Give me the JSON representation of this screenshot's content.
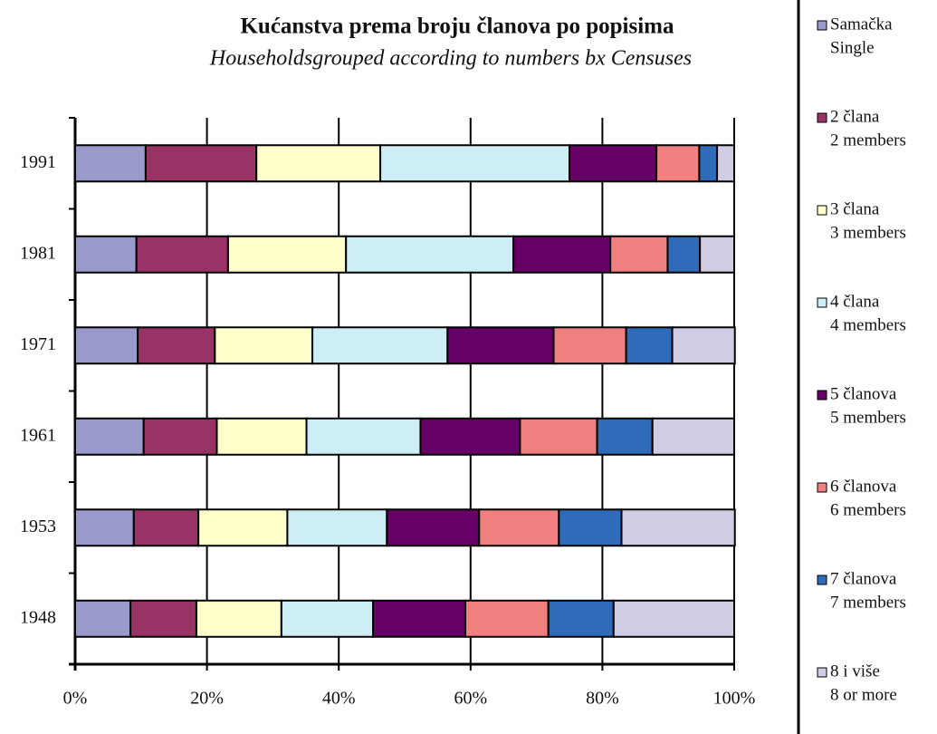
{
  "chart_data": {
    "type": "stacked_bar_horizontal_100",
    "title": "Kućanstva prema broju članova po popisima",
    "subtitle": "Householdsgrouped according to numbers bx Censuses",
    "categories": [
      "1991",
      "1981",
      "1971",
      "1961",
      "1953",
      "1948"
    ],
    "xlim": [
      0,
      100
    ],
    "xticks": [
      {
        "value": 0,
        "label": "0%"
      },
      {
        "value": 20,
        "label": "20%"
      },
      {
        "value": 40,
        "label": "40%"
      },
      {
        "value": 60,
        "label": "60%"
      },
      {
        "value": 80,
        "label": "80%"
      },
      {
        "value": 100,
        "label": "100%"
      }
    ],
    "grid": true,
    "legend": "right",
    "series": [
      {
        "name": "Samačka",
        "name_en": "Single",
        "color": "#9999cc",
        "values": [
          10.7,
          9.3,
          9.5,
          10.4,
          8.9,
          8.4
        ]
      },
      {
        "name": "2 člana",
        "name_en": "2 members",
        "color": "#993366",
        "values": [
          16.8,
          13.9,
          11.7,
          11.1,
          9.8,
          10.0
        ]
      },
      {
        "name": "3 člana",
        "name_en": "3 members",
        "color": "#ffffcc",
        "values": [
          18.8,
          17.9,
          14.8,
          13.6,
          13.5,
          12.9
        ]
      },
      {
        "name": "4 člana",
        "name_en": "4 members",
        "color": "#cceef4",
        "values": [
          28.7,
          25.4,
          20.5,
          17.3,
          15.1,
          13.9
        ]
      },
      {
        "name": "5 članova",
        "name_en": "5 members",
        "color": "#660066",
        "values": [
          13.2,
          14.7,
          16.1,
          15.1,
          14.0,
          14.0
        ]
      },
      {
        "name": "6 članova",
        "name_en": "6 members",
        "color": "#f08080",
        "values": [
          6.5,
          8.7,
          11.0,
          11.7,
          12.1,
          12.6
        ]
      },
      {
        "name": "7 članova",
        "name_en": "7 members",
        "color": "#2f6bb8",
        "values": [
          2.7,
          4.9,
          7.0,
          8.4,
          9.5,
          9.9
        ]
      },
      {
        "name": "8 i više",
        "name_en": "8 or more",
        "color": "#d0cce4",
        "values": [
          2.6,
          5.2,
          9.5,
          12.4,
          17.2,
          18.3
        ]
      }
    ]
  }
}
